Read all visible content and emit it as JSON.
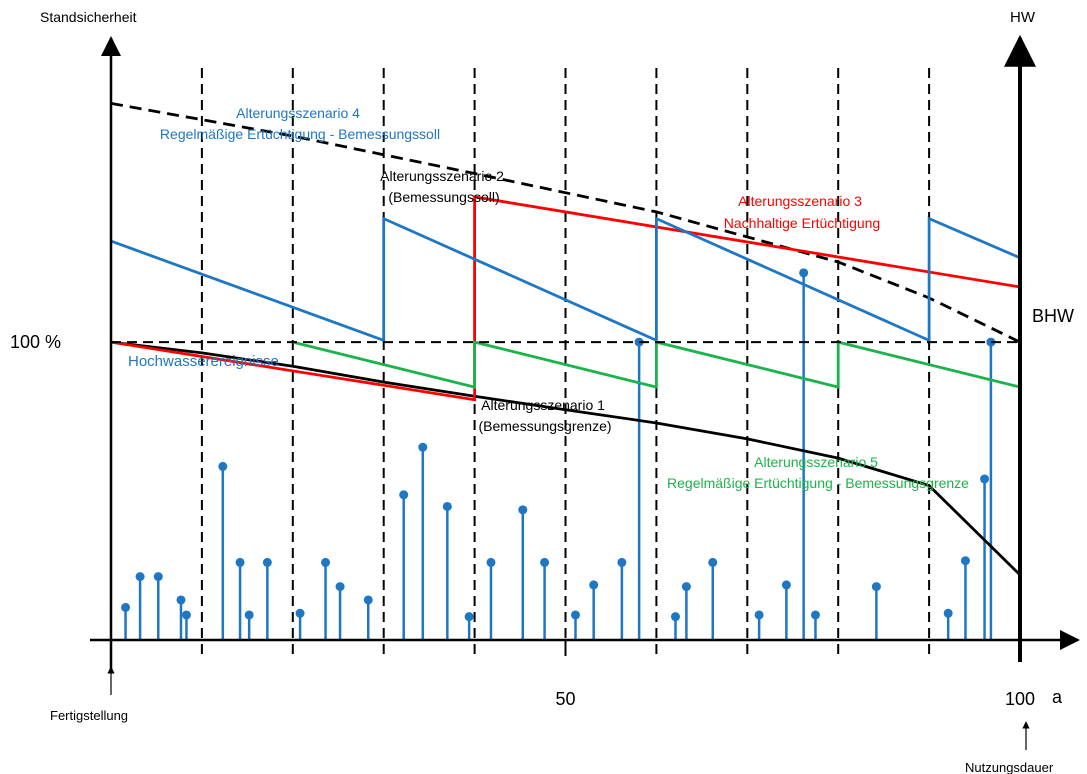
{
  "chart_data": {
    "type": "line",
    "y_axis_label": "Standsicherheit",
    "y2_axis_label": "HW",
    "x_unit_label": "a",
    "x_ticks": [
      {
        "value": 50,
        "label": "50"
      },
      {
        "value": 100,
        "label": "100"
      }
    ],
    "y_ticks": [
      {
        "value": 100,
        "label": "100 %"
      }
    ],
    "bhw_label": "BHW",
    "xlim": [
      0,
      100
    ],
    "ylim": [
      64.3,
      135.6
    ],
    "annotations": {
      "start": "Fertigstellung",
      "end": "Nutzungsdauer"
    },
    "grid_x": [
      10,
      20,
      30,
      40,
      50,
      60,
      70,
      80,
      90
    ],
    "colors": {
      "black": "#000000",
      "blue": "#1f77c4",
      "red": "#ff0000",
      "green": "#1bb34a"
    },
    "series": [
      {
        "key": "s1",
        "label_lines": [
          "Alterungsszenario 1",
          "(Bemessungsgrenze)"
        ],
        "color": "#000000",
        "dash": false,
        "points": [
          [
            0,
            100
          ],
          [
            10,
            98.7
          ],
          [
            20,
            97.1
          ],
          [
            30,
            95.2
          ],
          [
            40,
            93.5
          ],
          [
            50,
            91.9
          ],
          [
            60,
            90.3
          ],
          [
            70,
            88.4
          ],
          [
            80,
            86.1
          ],
          [
            90,
            82.8
          ],
          [
            100,
            72.1
          ]
        ]
      },
      {
        "key": "s2",
        "label_lines": [
          "Alterungsszenario 2",
          "(Bemessungssoll)"
        ],
        "color": "#000000",
        "dash": true,
        "points": [
          [
            0,
            128.6
          ],
          [
            20,
            124.7
          ],
          [
            40,
            120.2
          ],
          [
            60,
            115.6
          ],
          [
            80,
            109.6
          ],
          [
            90,
            105.3
          ],
          [
            100,
            100
          ]
        ]
      },
      {
        "key": "s3",
        "label_lines": [
          "Alterungsszenario 3",
          "Nachhaltige Ertüchtigung"
        ],
        "color": "#ff0000",
        "dash": false,
        "points": [
          [
            0,
            100
          ],
          [
            40,
            93.1
          ],
          [
            40,
            117.4
          ],
          [
            100,
            106.6
          ]
        ]
      },
      {
        "key": "s4",
        "label_lines": [
          "Alterungsszenario 4",
          "Regelmäßige Ertüchtigung - Bemessungssoll"
        ],
        "color": "#1f77c4",
        "dash": false,
        "points": [
          [
            0,
            112.1
          ],
          [
            30,
            100.2
          ],
          [
            30,
            114.8
          ],
          [
            60,
            100.2
          ],
          [
            60,
            114.8
          ],
          [
            90,
            100.2
          ],
          [
            90,
            114.8
          ],
          [
            100,
            110.1
          ]
        ]
      },
      {
        "key": "s5",
        "label_lines": [
          "Alterungsszenario 5",
          "Regelmäßige Ertüchtigung - Bemessungsgrenze"
        ],
        "color": "#1bb34a",
        "dash": false,
        "points": [
          [
            20,
            100
          ],
          [
            40,
            94.6
          ],
          [
            40,
            100
          ],
          [
            60,
            94.6
          ],
          [
            60,
            100
          ],
          [
            80,
            94.6
          ],
          [
            80,
            100
          ],
          [
            100,
            94.6
          ]
        ]
      }
    ],
    "events": {
      "label": "Hochwasserereignisse",
      "color": "#1f77c4",
      "stems": [
        [
          1.6,
          68.2
        ],
        [
          3.2,
          71.9
        ],
        [
          5.2,
          71.9
        ],
        [
          7.7,
          69.1
        ],
        [
          8.3,
          67.3
        ],
        [
          12.3,
          85.1
        ],
        [
          14.2,
          73.6
        ],
        [
          15.2,
          67.3
        ],
        [
          17.2,
          73.6
        ],
        [
          20.8,
          67.5
        ],
        [
          23.6,
          73.6
        ],
        [
          25.2,
          70.7
        ],
        [
          28.3,
          69.1
        ],
        [
          32.2,
          81.7
        ],
        [
          34.3,
          87.4
        ],
        [
          37.0,
          80.3
        ],
        [
          39.4,
          67.1
        ],
        [
          41.8,
          73.6
        ],
        [
          45.3,
          79.9
        ],
        [
          47.7,
          73.6
        ],
        [
          51.1,
          67.3
        ],
        [
          53.1,
          70.9
        ],
        [
          56.2,
          73.6
        ],
        [
          58.1,
          100
        ],
        [
          62.1,
          67.1
        ],
        [
          63.3,
          70.7
        ],
        [
          66.2,
          73.6
        ],
        [
          71.3,
          67.3
        ],
        [
          74.3,
          70.9
        ],
        [
          76.2,
          108.3
        ],
        [
          77.5,
          67.3
        ],
        [
          84.2,
          70.7
        ],
        [
          92.1,
          67.5
        ],
        [
          94.0,
          73.8
        ],
        [
          96.1,
          83.6
        ],
        [
          96.8,
          100
        ]
      ]
    }
  }
}
